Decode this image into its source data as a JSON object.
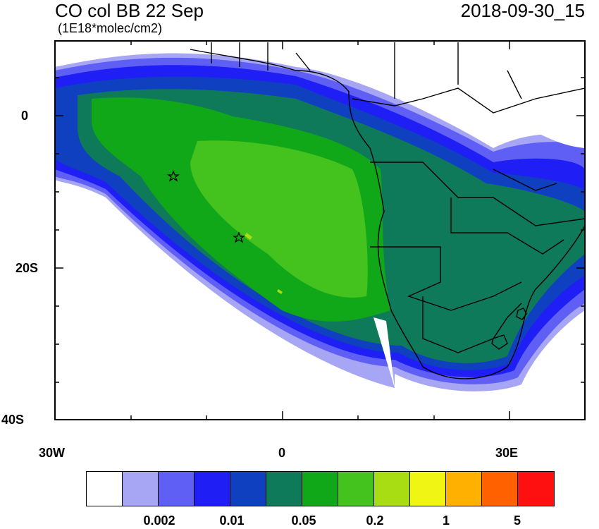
{
  "header": {
    "title": "CO col BB 22 Sep",
    "units": "(1E18*molec/cm2)",
    "timestamp": "2018-09-30_15"
  },
  "axes": {
    "y_labels": [
      "0",
      "20S",
      "40S"
    ],
    "x_labels": [
      "30W",
      "0",
      "30E"
    ]
  },
  "markers": [
    "star-marker",
    "star-marker"
  ],
  "colorbar": {
    "colors": [
      "#ffffff",
      "#a6a6f5",
      "#5f5ff5",
      "#1e1ef5",
      "#0e40c0",
      "#0f7a5a",
      "#10a818",
      "#44c21e",
      "#a8dd14",
      "#f0f514",
      "#ffb000",
      "#ff6000",
      "#ff1010"
    ],
    "labels": [
      "0.002",
      "0.01",
      "0.05",
      "0.2",
      "1",
      "5"
    ]
  }
}
